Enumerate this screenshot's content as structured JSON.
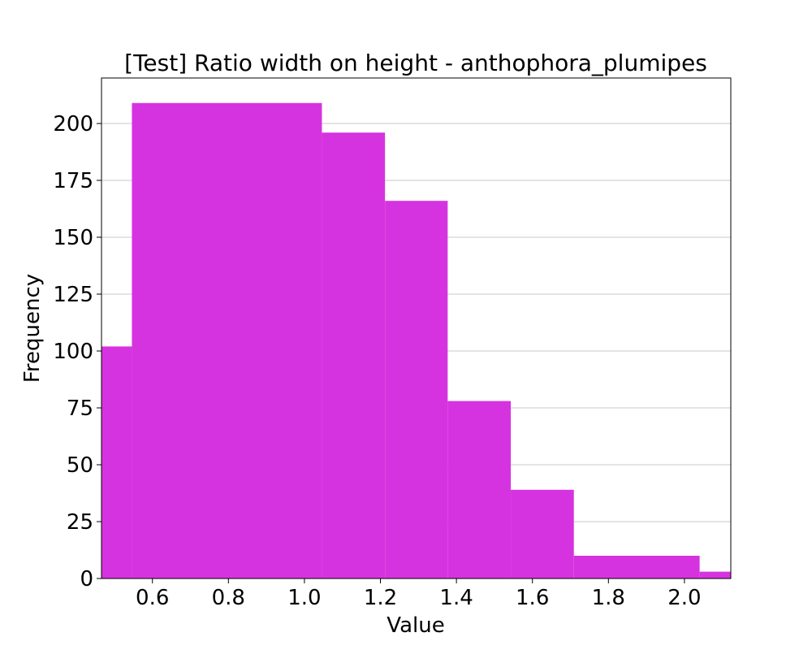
{
  "chart_data": {
    "type": "bar",
    "title": "[Test] Ratio width on height - anthophora_plumipes",
    "xlabel": "Value",
    "ylabel": "Frequency",
    "bin_edges": [
      0.466,
      0.546,
      1.046,
      1.212,
      1.377,
      1.543,
      1.709,
      2.04,
      2.122
    ],
    "values": [
      102,
      209,
      196,
      166,
      78,
      39,
      10,
      3
    ],
    "xlim": [
      0.466,
      2.122
    ],
    "ylim": [
      0,
      220
    ],
    "xticks": [
      "0.6",
      "0.8",
      "1.0",
      "1.2",
      "1.4",
      "1.6",
      "1.8",
      "2.0"
    ],
    "yticks": [
      "0",
      "25",
      "50",
      "75",
      "100",
      "125",
      "150",
      "175",
      "200"
    ],
    "grid": "y",
    "color": "#d633e0"
  }
}
